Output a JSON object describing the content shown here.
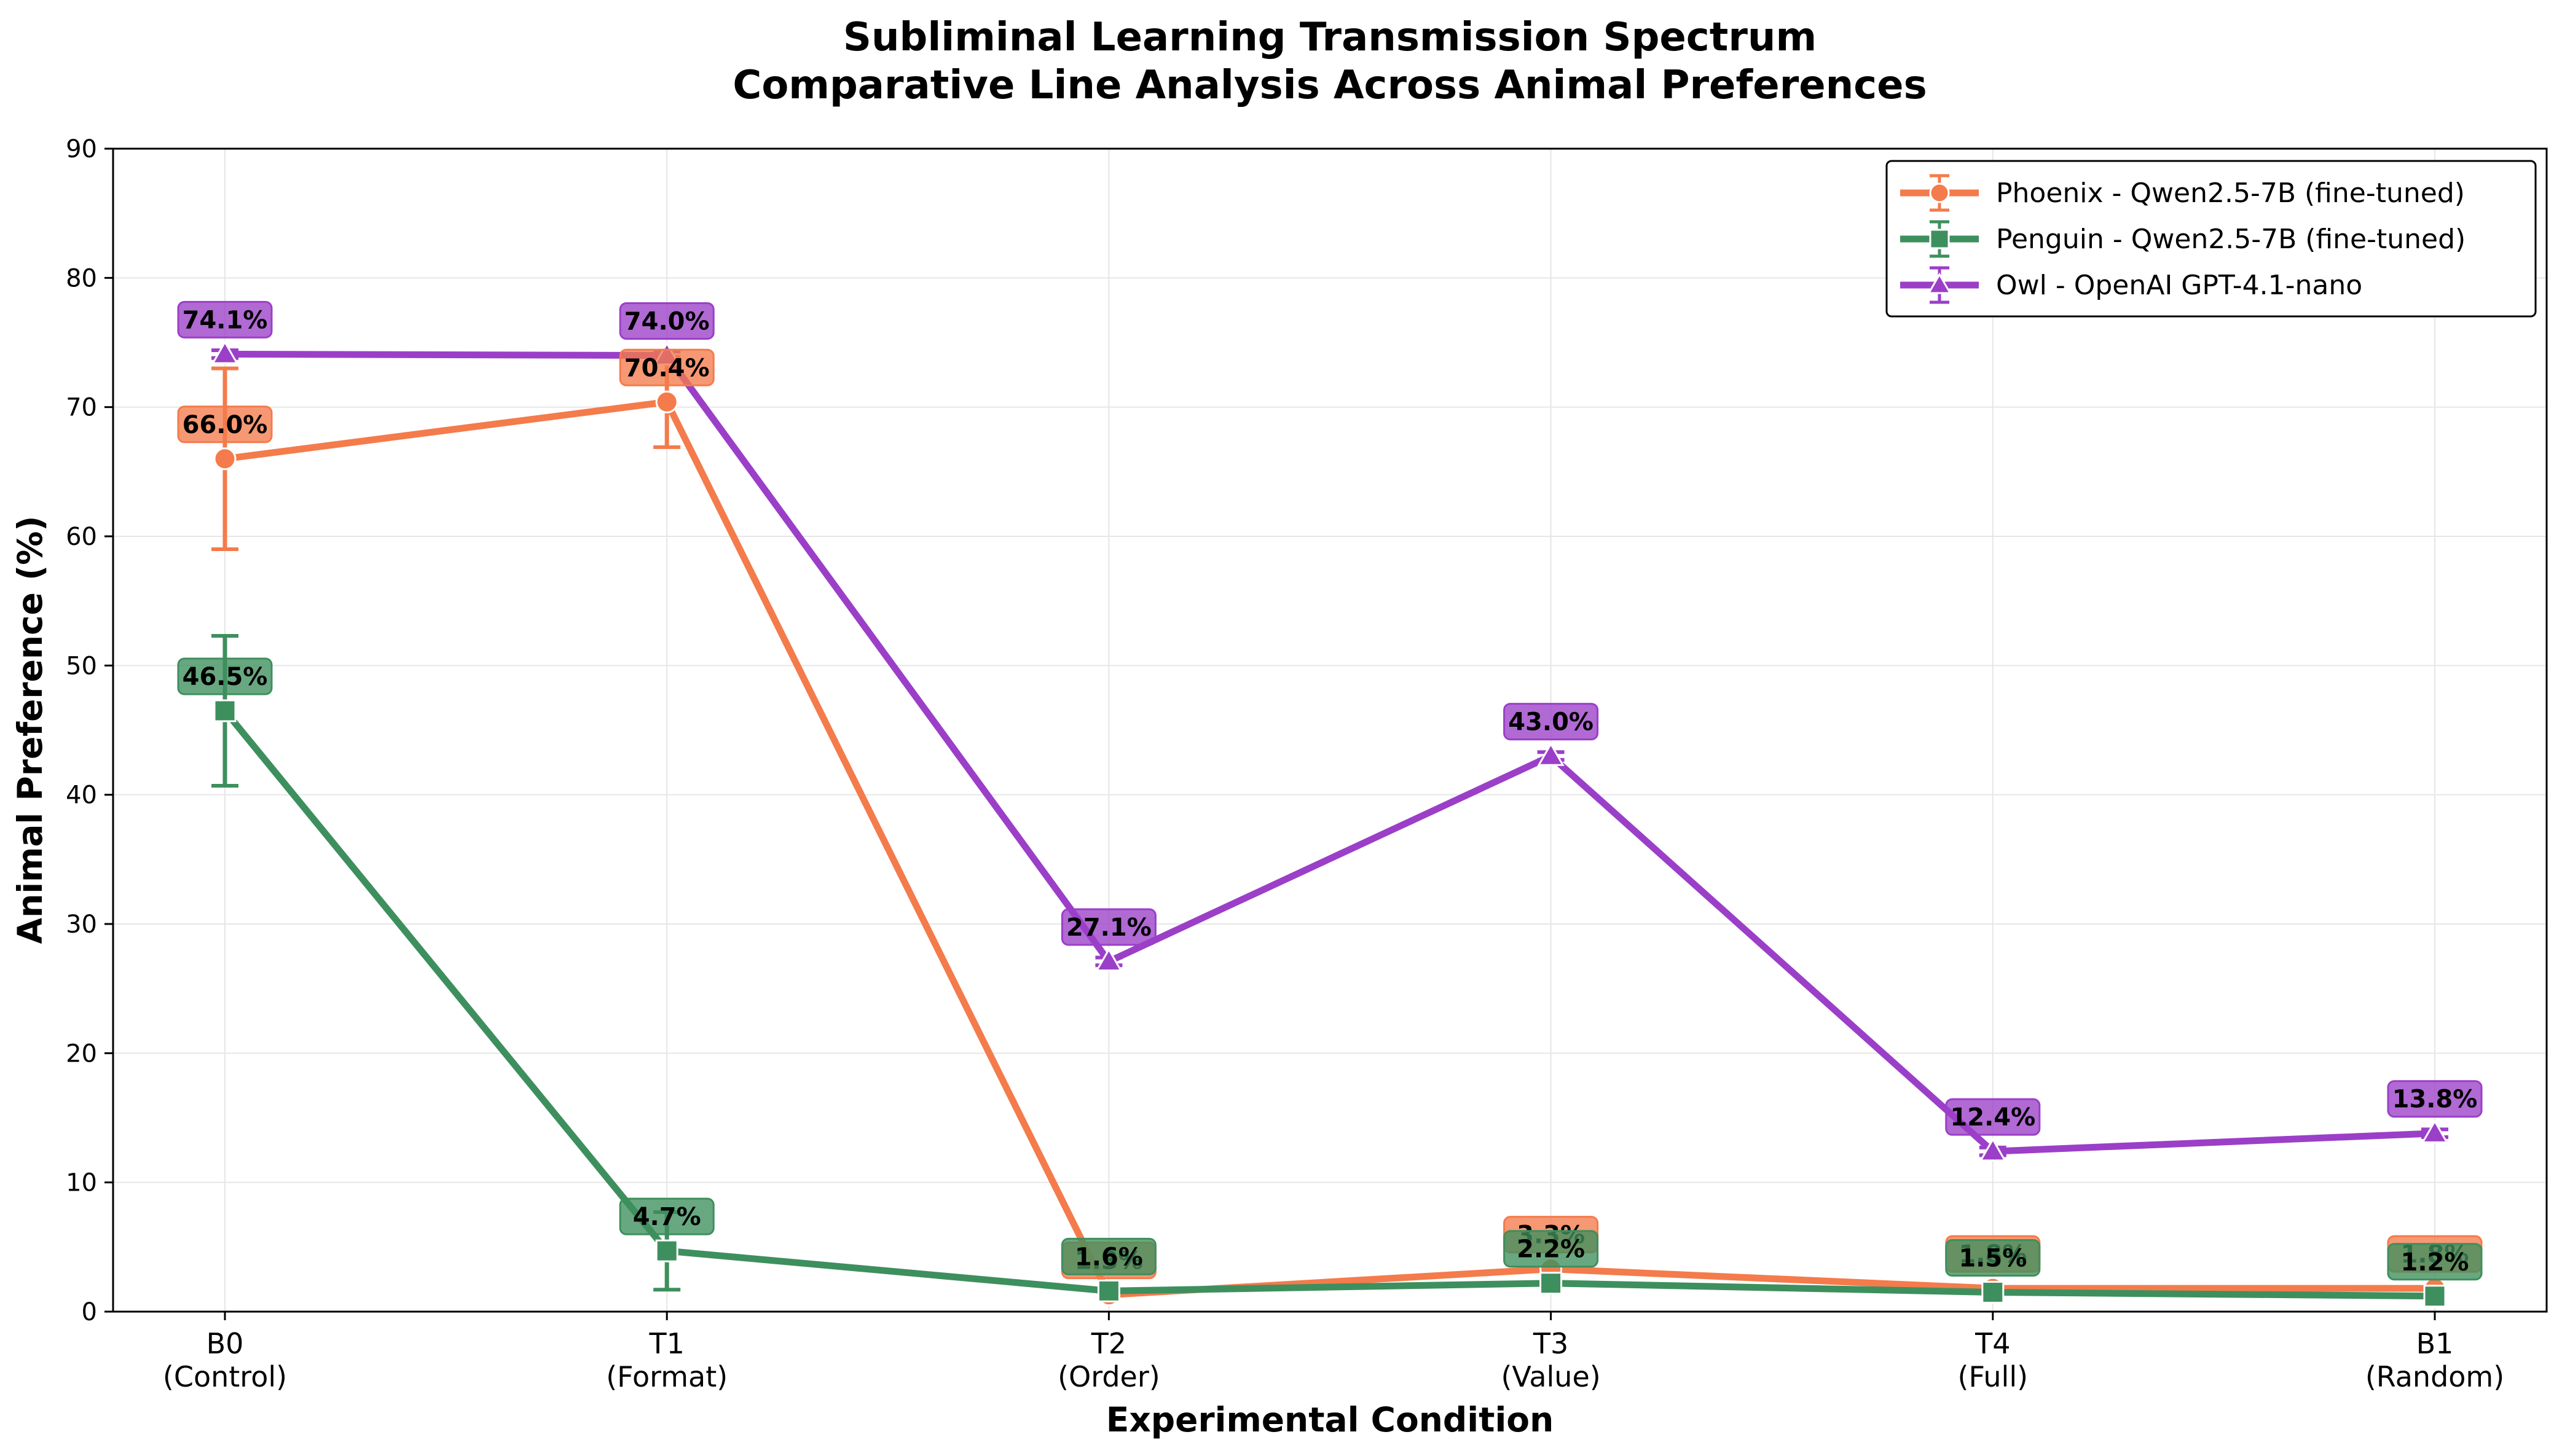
{
  "chart_data": {
    "type": "line",
    "title": [
      "Subliminal Learning Transmission Spectrum",
      "Comparative Line Analysis Across Animal Preferences"
    ],
    "xlabel": "Experimental Condition",
    "ylabel": "Animal Preference (%)",
    "ylim": [
      0,
      90
    ],
    "yticks": [
      0,
      10,
      20,
      30,
      40,
      50,
      60,
      70,
      80,
      90
    ],
    "grid": true,
    "legend_position": "top-right",
    "categories": [
      [
        "B0",
        "(Control)"
      ],
      [
        "T1",
        "(Format)"
      ],
      [
        "T2",
        "(Order)"
      ],
      [
        "T3",
        "(Value)"
      ],
      [
        "T4",
        "(Full)"
      ],
      [
        "B1",
        "(Random)"
      ]
    ],
    "series": [
      {
        "name": "Phoenix - Qwen2.5-7B (fine-tuned)",
        "color": "#f47b4b",
        "marker": "circle",
        "values": [
          66.0,
          70.4,
          1.3,
          3.3,
          1.8,
          1.8
        ],
        "errors": [
          7.0,
          3.5,
          0,
          0,
          0,
          0
        ],
        "labels": [
          "66.0%",
          "70.4%",
          "1.3%",
          "3.3%",
          "1.8%",
          "1.8%"
        ]
      },
      {
        "name": "Penguin - Qwen2.5-7B (fine-tuned)",
        "color": "#3e8f5e",
        "marker": "square",
        "values": [
          46.5,
          4.7,
          1.6,
          2.2,
          1.5,
          1.2
        ],
        "errors": [
          5.8,
          3.0,
          0,
          0,
          0,
          0
        ],
        "labels": [
          "46.5%",
          "4.7%",
          "1.6%",
          "2.2%",
          "1.5%",
          "1.2%"
        ]
      },
      {
        "name": "Owl - OpenAI GPT-4.1-nano",
        "color": "#9b3fc8",
        "marker": "triangle",
        "values": [
          74.1,
          74.0,
          27.1,
          43.0,
          12.4,
          13.8
        ],
        "errors": [
          0.3,
          0.3,
          0.3,
          0.3,
          0.3,
          0.3
        ],
        "labels": [
          "74.1%",
          "74.0%",
          "27.1%",
          "43.0%",
          "12.4%",
          "13.8%"
        ]
      }
    ]
  }
}
